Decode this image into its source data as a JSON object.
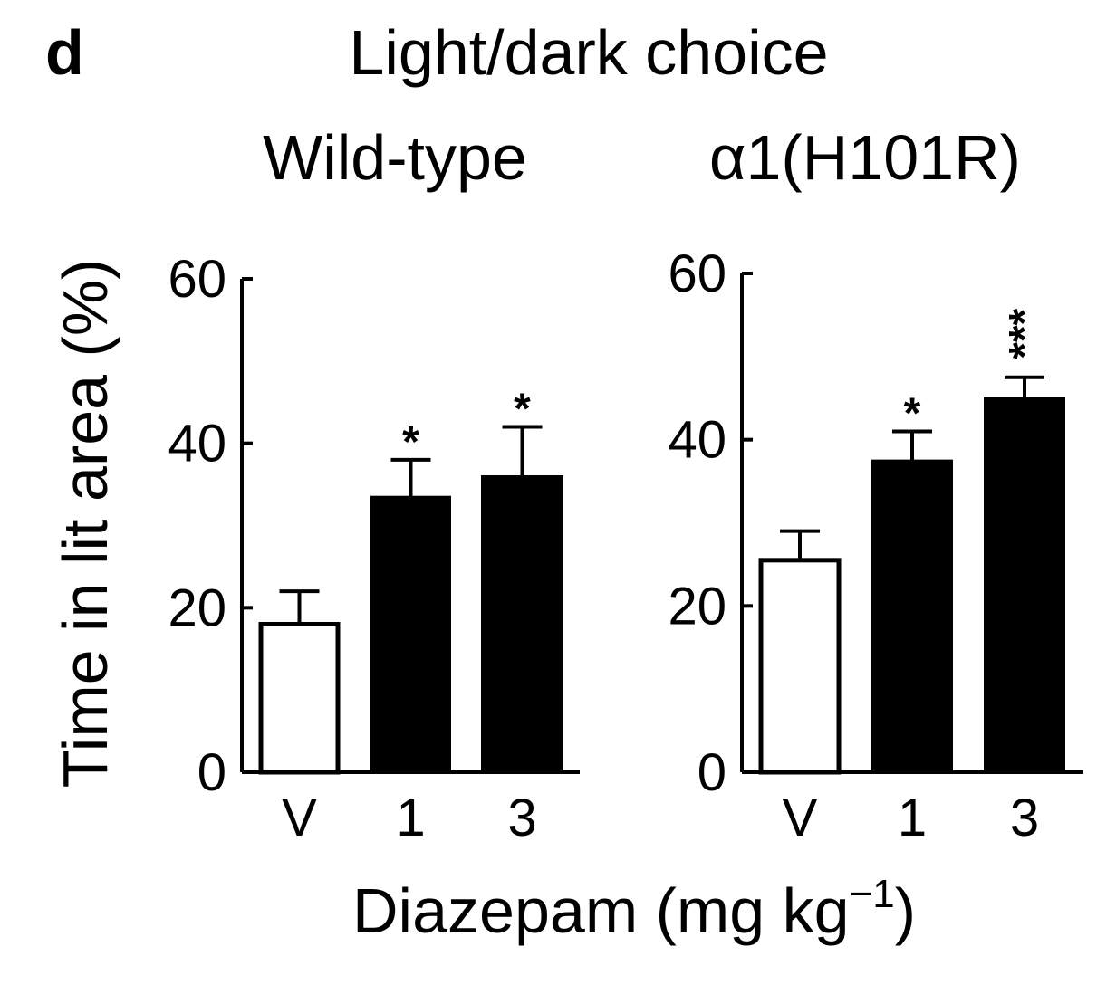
{
  "panel_label": "d",
  "title": "Light/dark choice",
  "ylabel": "Time in lit area (%)",
  "xlabel_main": "Diazepam (mg kg",
  "xlabel_sup": "−1",
  "xlabel_close": ")",
  "chart_data": [
    {
      "type": "bar",
      "title": "Wild-type",
      "categories": [
        "V",
        "1",
        "3"
      ],
      "values": [
        18,
        33.5,
        36
      ],
      "errors": [
        4,
        4.5,
        6
      ],
      "bar_colors": [
        "#ffffff",
        "#000000",
        "#000000"
      ],
      "significance": [
        "",
        "*",
        "*"
      ],
      "ylim": [
        0,
        60
      ],
      "yticks": [
        0,
        20,
        40,
        60
      ],
      "ylabel": "Time in lit area (%)",
      "xlabel": "Diazepam (mg kg−1)"
    },
    {
      "type": "bar",
      "title": "α1(H101R)",
      "categories": [
        "V",
        "1",
        "3"
      ],
      "values": [
        25.5,
        37.5,
        45
      ],
      "errors": [
        3.5,
        3.5,
        2.5
      ],
      "bar_colors": [
        "#ffffff",
        "#000000",
        "#000000"
      ],
      "significance": [
        "",
        "*",
        "***"
      ],
      "ylim": [
        0,
        60
      ],
      "yticks": [
        0,
        20,
        40,
        60
      ],
      "ylabel": "Time in lit area (%)",
      "xlabel": "Diazepam (mg kg−1)"
    }
  ]
}
